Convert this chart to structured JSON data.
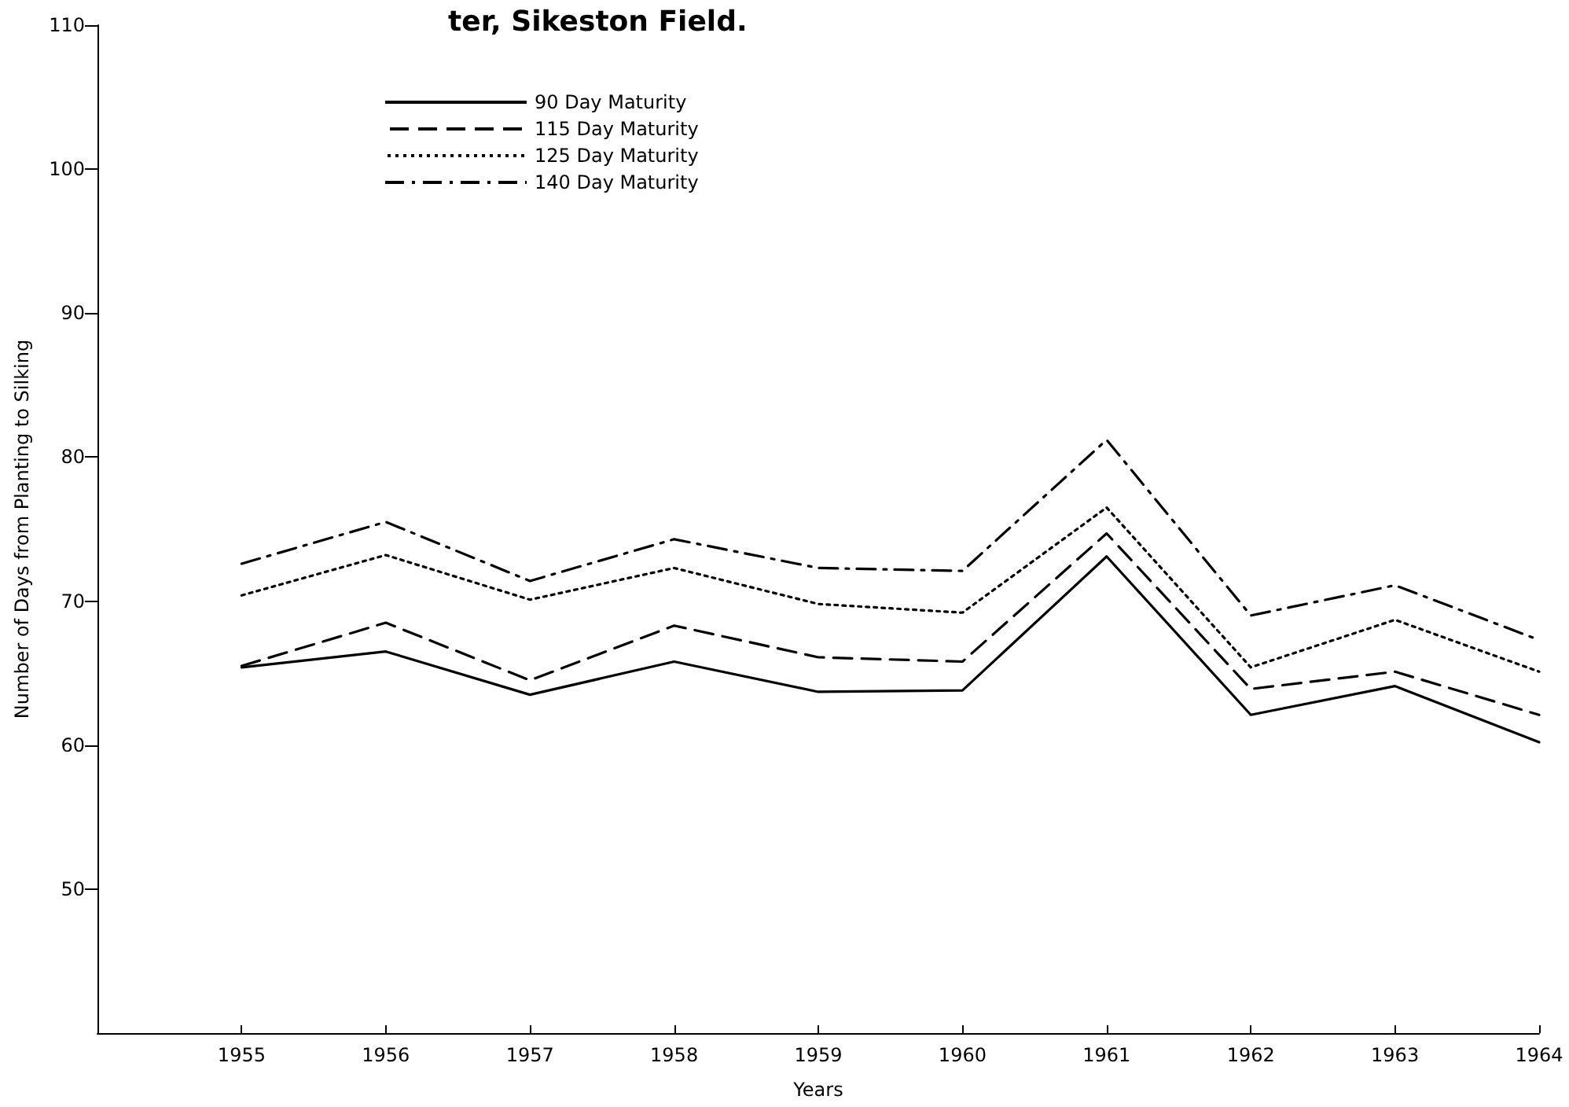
{
  "chart_data": {
    "type": "line",
    "title": "ter, Sikeston Field.",
    "xlabel": "Years",
    "ylabel": "Number of Days from Planting to Silking",
    "x": [
      1955,
      1956,
      1957,
      1958,
      1959,
      1960,
      1961,
      1962,
      1963,
      1964
    ],
    "series": [
      {
        "name": "90 Day Maturity",
        "color": "#000000",
        "line_style": "solid",
        "values": [
          65.4,
          66.5,
          63.5,
          65.8,
          63.7,
          63.8,
          73.1,
          62.1,
          64.1,
          60.2
        ]
      },
      {
        "name": "115 Day Maturity",
        "color": "#000000",
        "line_style": "dashed",
        "values": [
          65.5,
          68.5,
          64.5,
          68.3,
          66.1,
          65.8,
          74.7,
          63.9,
          65.1,
          62.1
        ]
      },
      {
        "name": "125 Day Maturity",
        "color": "#000000",
        "line_style": "dotted",
        "values": [
          70.4,
          73.2,
          70.1,
          72.3,
          69.8,
          69.2,
          76.5,
          65.4,
          68.7,
          65.1
        ]
      },
      {
        "name": "140 Day Maturity",
        "color": "#000000",
        "line_style": "dashdot",
        "values": [
          72.6,
          75.5,
          71.4,
          74.3,
          72.3,
          72.1,
          81.2,
          69.0,
          71.1,
          67.3
        ]
      }
    ],
    "xlim": [
      1954,
      1964
    ],
    "xticks": [
      1955,
      1956,
      1957,
      1958,
      1959,
      1960,
      1961,
      1962,
      1963,
      1964
    ],
    "ylim": [
      40,
      110
    ],
    "yticks": [
      50,
      60,
      70,
      80,
      90,
      100,
      110
    ],
    "grid": false,
    "legend": "top left",
    "marker": "none"
  }
}
